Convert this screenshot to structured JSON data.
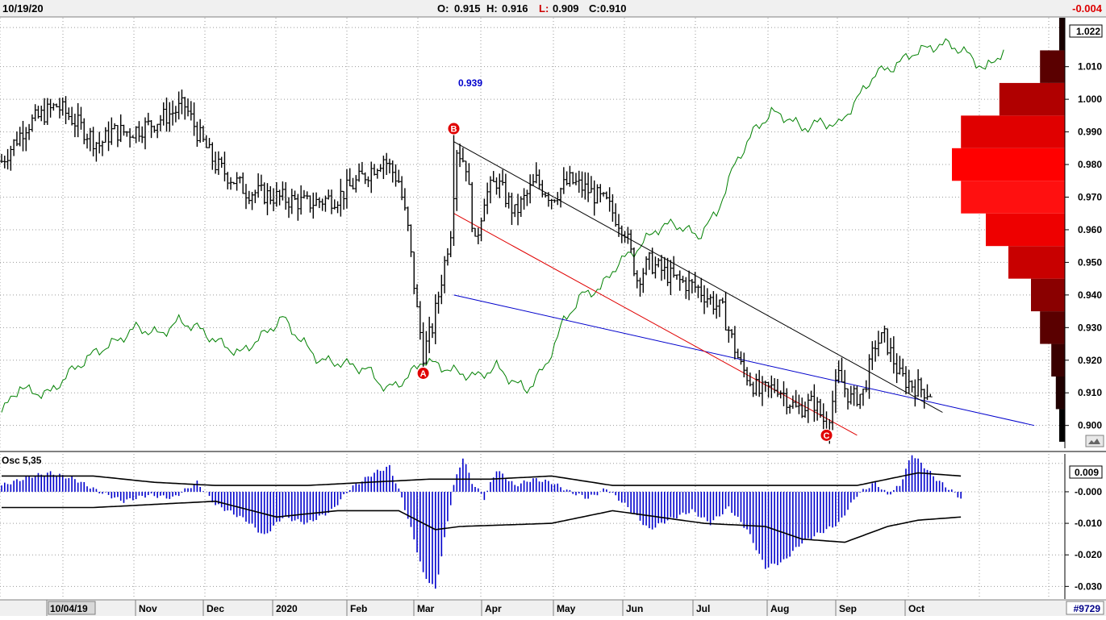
{
  "header": {
    "date": "10/19/20",
    "open_label": "O:",
    "open": "0.915",
    "high_label": "H:",
    "high": "0.916",
    "low_label": "L:",
    "low": "0.909",
    "close_label": "C:",
    "close": "0.910",
    "change": "-0.004",
    "last_price": "1.022"
  },
  "footer": {
    "symbol_code": "#9729",
    "x_labels": [
      "10/04/19",
      "Nov",
      "Dec",
      "2020",
      "Feb",
      "Mar",
      "Apr",
      "May",
      "Jun",
      "Jul",
      "Aug",
      "Sep",
      "Oct"
    ]
  },
  "annotations": {
    "line_value": "0.939",
    "points": [
      "A",
      "B",
      "C"
    ]
  },
  "oscillator": {
    "name": "Osc 5,35",
    "current": "0.009"
  },
  "colors": {
    "price_bars": "#000000",
    "green_line": "#008000",
    "blue_channel": "#0000cc",
    "red_channel": "#e00000",
    "osc_hist": "#0000cc",
    "point_marker": "#e00000",
    "volume_profile": [
      "#000000",
      "#1f0000",
      "#3a0000",
      "#600000",
      "#900000",
      "#c80000",
      "#ff0000",
      "#ff2020"
    ]
  },
  "chart_data": [
    {
      "type": "ohlc",
      "series_name": "price",
      "ylim": [
        0.893,
        1.025
      ],
      "y_ticks": [
        1.022,
        1.01,
        1.0,
        0.99,
        0.98,
        0.97,
        0.96,
        0.95,
        0.94,
        0.93,
        0.92,
        0.91,
        0.9
      ],
      "tick_labels": [
        "1.022",
        "1.010",
        "1.000",
        "0.990",
        "0.980",
        "0.970",
        "0.960",
        "0.950",
        "0.940",
        "0.930",
        "0.920",
        "0.910",
        "0.900"
      ],
      "x_categories": [
        "10/04/19",
        "Nov",
        "Dec",
        "2020",
        "Feb",
        "Mar",
        "Apr",
        "May",
        "Jun",
        "Jul",
        "Aug",
        "Sep",
        "Oct"
      ],
      "anchors": [
        {
          "i": 0,
          "v": 0.981
        },
        {
          "i": 8,
          "v": 0.992
        },
        {
          "i": 18,
          "v": 0.998
        },
        {
          "i": 22,
          "v": 0.995
        },
        {
          "i": 32,
          "v": 0.986
        },
        {
          "i": 36,
          "v": 0.99
        },
        {
          "i": 42,
          "v": 0.99
        },
        {
          "i": 48,
          "v": 0.992
        },
        {
          "i": 60,
          "v": 0.998
        },
        {
          "i": 64,
          "v": 0.99
        },
        {
          "i": 70,
          "v": 0.98
        },
        {
          "i": 80,
          "v": 0.972
        },
        {
          "i": 90,
          "v": 0.97
        },
        {
          "i": 100,
          "v": 0.968
        },
        {
          "i": 110,
          "v": 0.97
        },
        {
          "i": 118,
          "v": 0.976
        },
        {
          "i": 125,
          "v": 0.982
        },
        {
          "i": 130,
          "v": 0.975
        },
        {
          "i": 133,
          "v": 0.96
        },
        {
          "i": 136,
          "v": 0.935
        },
        {
          "i": 138,
          "v": 0.922
        },
        {
          "i": 141,
          "v": 0.93
        },
        {
          "i": 144,
          "v": 0.945
        },
        {
          "i": 147,
          "v": 0.96
        },
        {
          "i": 149,
          "v": 0.985
        },
        {
          "i": 152,
          "v": 0.98
        },
        {
          "i": 155,
          "v": 0.955
        },
        {
          "i": 158,
          "v": 0.97
        },
        {
          "i": 162,
          "v": 0.975
        },
        {
          "i": 168,
          "v": 0.965
        },
        {
          "i": 175,
          "v": 0.975
        },
        {
          "i": 180,
          "v": 0.97
        },
        {
          "i": 186,
          "v": 0.975
        },
        {
          "i": 192,
          "v": 0.972
        },
        {
          "i": 198,
          "v": 0.968
        },
        {
          "i": 204,
          "v": 0.96
        },
        {
          "i": 208,
          "v": 0.945
        },
        {
          "i": 212,
          "v": 0.95
        },
        {
          "i": 220,
          "v": 0.945
        },
        {
          "i": 228,
          "v": 0.942
        },
        {
          "i": 236,
          "v": 0.935
        },
        {
          "i": 242,
          "v": 0.918
        },
        {
          "i": 248,
          "v": 0.91
        },
        {
          "i": 254,
          "v": 0.912
        },
        {
          "i": 260,
          "v": 0.905
        },
        {
          "i": 266,
          "v": 0.907
        },
        {
          "i": 270,
          "v": 0.9
        },
        {
          "i": 274,
          "v": 0.915
        },
        {
          "i": 278,
          "v": 0.908
        },
        {
          "i": 282,
          "v": 0.91
        },
        {
          "i": 286,
          "v": 0.925
        },
        {
          "i": 289,
          "v": 0.927
        },
        {
          "i": 294,
          "v": 0.915
        },
        {
          "i": 299,
          "v": 0.912
        },
        {
          "i": 304,
          "v": 0.91
        }
      ],
      "points": [
        {
          "label": "A",
          "date_index": 138,
          "value": 0.916
        },
        {
          "label": "B",
          "date_index": 148,
          "value": 0.991
        },
        {
          "label": "C",
          "date_index": 270,
          "value": 0.897
        }
      ],
      "channel_lines": [
        {
          "name": "blue",
          "x0": 148,
          "y0": 0.94,
          "x1": 338,
          "y1": 0.9
        },
        {
          "name": "black",
          "x0": 148,
          "y0": 0.987,
          "x1": 308,
          "y1": 0.904
        },
        {
          "name": "red",
          "x0": 148,
          "y0": 0.965,
          "x1": 280,
          "y1": 0.897
        }
      ],
      "green_line_ylim": [
        0.893,
        1.025
      ],
      "green_line": [
        {
          "i": 0,
          "v": 0.904
        },
        {
          "i": 6,
          "v": 0.912
        },
        {
          "i": 10,
          "v": 0.91
        },
        {
          "i": 16,
          "v": 0.91
        },
        {
          "i": 22,
          "v": 0.916
        },
        {
          "i": 30,
          "v": 0.922
        },
        {
          "i": 38,
          "v": 0.926
        },
        {
          "i": 44,
          "v": 0.93
        },
        {
          "i": 52,
          "v": 0.928
        },
        {
          "i": 58,
          "v": 0.932
        },
        {
          "i": 64,
          "v": 0.93
        },
        {
          "i": 70,
          "v": 0.926
        },
        {
          "i": 78,
          "v": 0.922
        },
        {
          "i": 86,
          "v": 0.928
        },
        {
          "i": 92,
          "v": 0.933
        },
        {
          "i": 98,
          "v": 0.926
        },
        {
          "i": 104,
          "v": 0.92
        },
        {
          "i": 112,
          "v": 0.919
        },
        {
          "i": 120,
          "v": 0.917
        },
        {
          "i": 126,
          "v": 0.911
        },
        {
          "i": 132,
          "v": 0.914
        },
        {
          "i": 138,
          "v": 0.92
        },
        {
          "i": 144,
          "v": 0.918
        },
        {
          "i": 150,
          "v": 0.916
        },
        {
          "i": 156,
          "v": 0.915
        },
        {
          "i": 162,
          "v": 0.918
        },
        {
          "i": 168,
          "v": 0.913
        },
        {
          "i": 172,
          "v": 0.911
        },
        {
          "i": 178,
          "v": 0.918
        },
        {
          "i": 184,
          "v": 0.932
        },
        {
          "i": 190,
          "v": 0.94
        },
        {
          "i": 196,
          "v": 0.942
        },
        {
          "i": 202,
          "v": 0.95
        },
        {
          "i": 208,
          "v": 0.954
        },
        {
          "i": 214,
          "v": 0.96
        },
        {
          "i": 220,
          "v": 0.962
        },
        {
          "i": 228,
          "v": 0.958
        },
        {
          "i": 234,
          "v": 0.965
        },
        {
          "i": 240,
          "v": 0.98
        },
        {
          "i": 246,
          "v": 0.99
        },
        {
          "i": 252,
          "v": 0.996
        },
        {
          "i": 258,
          "v": 0.994
        },
        {
          "i": 262,
          "v": 0.991
        },
        {
          "i": 268,
          "v": 0.993
        },
        {
          "i": 274,
          "v": 0.992
        },
        {
          "i": 280,
          "v": 1.0
        },
        {
          "i": 286,
          "v": 1.008
        },
        {
          "i": 292,
          "v": 1.01
        },
        {
          "i": 298,
          "v": 1.014
        },
        {
          "i": 304,
          "v": 1.016
        },
        {
          "i": 310,
          "v": 1.017
        },
        {
          "i": 316,
          "v": 1.014
        },
        {
          "i": 322,
          "v": 1.009
        },
        {
          "i": 328,
          "v": 1.015
        }
      ],
      "volume_profile": [
        {
          "price_lo": 0.895,
          "price_hi": 0.905,
          "value": 0.05
        },
        {
          "price_lo": 0.905,
          "price_hi": 0.915,
          "value": 0.08
        },
        {
          "price_lo": 0.915,
          "price_hi": 0.925,
          "value": 0.12
        },
        {
          "price_lo": 0.925,
          "price_hi": 0.935,
          "value": 0.22
        },
        {
          "price_lo": 0.935,
          "price_hi": 0.945,
          "value": 0.3
        },
        {
          "price_lo": 0.945,
          "price_hi": 0.955,
          "value": 0.5
        },
        {
          "price_lo": 0.955,
          "price_hi": 0.965,
          "value": 0.7
        },
        {
          "price_lo": 0.965,
          "price_hi": 0.975,
          "value": 0.92
        },
        {
          "price_lo": 0.975,
          "price_hi": 0.985,
          "value": 1.0
        },
        {
          "price_lo": 0.985,
          "price_hi": 0.995,
          "value": 0.92
        },
        {
          "price_lo": 0.995,
          "price_hi": 1.005,
          "value": 0.58
        },
        {
          "price_lo": 1.005,
          "price_hi": 1.015,
          "value": 0.22
        },
        {
          "price_lo": 1.015,
          "price_hi": 1.025,
          "value": 0.05
        }
      ]
    },
    {
      "type": "bar",
      "series_name": "Osc 5,35",
      "ylim": [
        -0.034,
        0.012
      ],
      "y_ticks": [
        0.009,
        -0.0,
        -0.01,
        -0.02,
        -0.03
      ],
      "tick_labels": [
        "0.009",
        "-0.000",
        "-0.010",
        "-0.020",
        "-0.030"
      ],
      "anchors": [
        {
          "i": 0,
          "v": 0.002
        },
        {
          "i": 10,
          "v": 0.005
        },
        {
          "i": 16,
          "v": 0.006
        },
        {
          "i": 24,
          "v": 0.004
        },
        {
          "i": 32,
          "v": 0.0
        },
        {
          "i": 40,
          "v": -0.003
        },
        {
          "i": 48,
          "v": -0.001
        },
        {
          "i": 56,
          "v": -0.002
        },
        {
          "i": 64,
          "v": 0.003
        },
        {
          "i": 70,
          "v": -0.004
        },
        {
          "i": 80,
          "v": -0.009
        },
        {
          "i": 86,
          "v": -0.014
        },
        {
          "i": 92,
          "v": -0.008
        },
        {
          "i": 100,
          "v": -0.01
        },
        {
          "i": 108,
          "v": -0.006
        },
        {
          "i": 114,
          "v": 0.001
        },
        {
          "i": 122,
          "v": 0.006
        },
        {
          "i": 127,
          "v": 0.008
        },
        {
          "i": 131,
          "v": -0.002
        },
        {
          "i": 135,
          "v": -0.015
        },
        {
          "i": 138,
          "v": -0.026
        },
        {
          "i": 142,
          "v": -0.031
        },
        {
          "i": 145,
          "v": -0.015
        },
        {
          "i": 148,
          "v": 0.002
        },
        {
          "i": 151,
          "v": 0.011
        },
        {
          "i": 154,
          "v": 0.003
        },
        {
          "i": 158,
          "v": -0.002
        },
        {
          "i": 162,
          "v": 0.007
        },
        {
          "i": 168,
          "v": 0.002
        },
        {
          "i": 174,
          "v": 0.004
        },
        {
          "i": 180,
          "v": 0.003
        },
        {
          "i": 186,
          "v": 0.0
        },
        {
          "i": 192,
          "v": -0.002
        },
        {
          "i": 198,
          "v": 0.001
        },
        {
          "i": 204,
          "v": -0.004
        },
        {
          "i": 212,
          "v": -0.012
        },
        {
          "i": 218,
          "v": -0.009
        },
        {
          "i": 226,
          "v": -0.006
        },
        {
          "i": 232,
          "v": -0.01
        },
        {
          "i": 238,
          "v": -0.005
        },
        {
          "i": 244,
          "v": -0.012
        },
        {
          "i": 250,
          "v": -0.024
        },
        {
          "i": 256,
          "v": -0.022
        },
        {
          "i": 262,
          "v": -0.016
        },
        {
          "i": 268,
          "v": -0.013
        },
        {
          "i": 274,
          "v": -0.01
        },
        {
          "i": 280,
          "v": -0.001
        },
        {
          "i": 286,
          "v": 0.003
        },
        {
          "i": 290,
          "v": -0.001
        },
        {
          "i": 294,
          "v": 0.002
        },
        {
          "i": 298,
          "v": 0.012
        },
        {
          "i": 302,
          "v": 0.008
        },
        {
          "i": 306,
          "v": 0.004
        },
        {
          "i": 310,
          "v": 0.001
        },
        {
          "i": 314,
          "v": -0.002
        }
      ],
      "signal_line": [
        {
          "i": 0,
          "v": 0.005
        },
        {
          "i": 30,
          "v": 0.005
        },
        {
          "i": 50,
          "v": 0.003
        },
        {
          "i": 70,
          "v": 0.002
        },
        {
          "i": 100,
          "v": 0.002
        },
        {
          "i": 140,
          "v": 0.004
        },
        {
          "i": 160,
          "v": 0.004
        },
        {
          "i": 180,
          "v": 0.005
        },
        {
          "i": 200,
          "v": 0.002
        },
        {
          "i": 240,
          "v": 0.002
        },
        {
          "i": 280,
          "v": 0.002
        },
        {
          "i": 300,
          "v": 0.006
        },
        {
          "i": 314,
          "v": 0.005
        }
      ],
      "lower_line": [
        {
          "i": 0,
          "v": -0.005
        },
        {
          "i": 30,
          "v": -0.005
        },
        {
          "i": 70,
          "v": -0.003
        },
        {
          "i": 90,
          "v": -0.008
        },
        {
          "i": 110,
          "v": -0.006
        },
        {
          "i": 130,
          "v": -0.006
        },
        {
          "i": 142,
          "v": -0.012
        },
        {
          "i": 150,
          "v": -0.011
        },
        {
          "i": 180,
          "v": -0.01
        },
        {
          "i": 200,
          "v": -0.006
        },
        {
          "i": 230,
          "v": -0.01
        },
        {
          "i": 250,
          "v": -0.011
        },
        {
          "i": 262,
          "v": -0.015
        },
        {
          "i": 276,
          "v": -0.016
        },
        {
          "i": 290,
          "v": -0.011
        },
        {
          "i": 300,
          "v": -0.009
        },
        {
          "i": 314,
          "v": -0.008
        }
      ]
    }
  ]
}
